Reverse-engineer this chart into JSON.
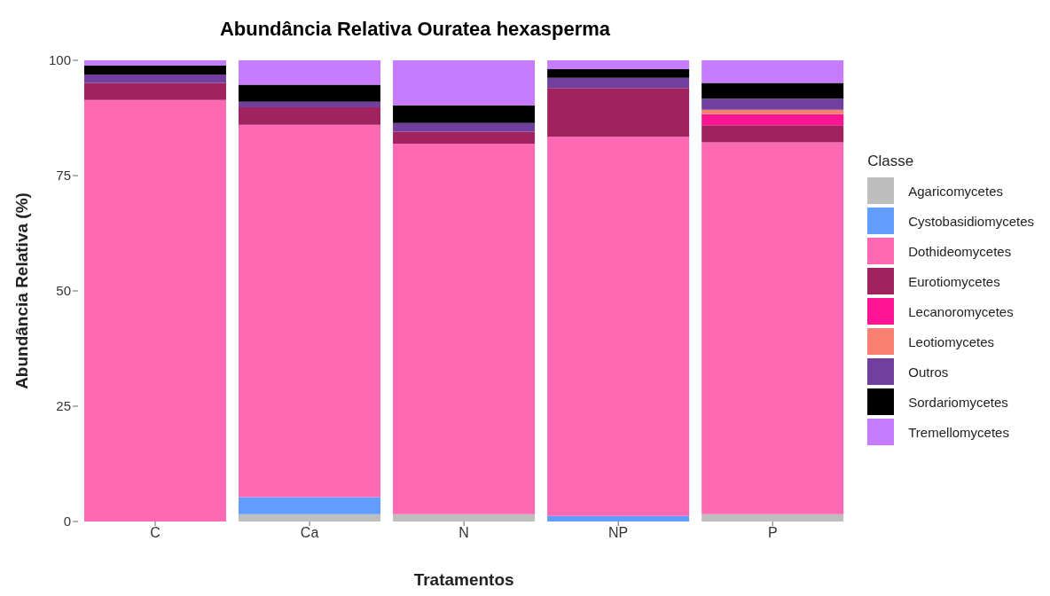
{
  "chart_data": {
    "type": "bar",
    "stacked": true,
    "title": "Abundância Relativa Ouratea hexasperma",
    "xlabel": "Tratamentos",
    "ylabel": "Abundância Relativa (%)",
    "legend_title": "Classe",
    "legend": "right",
    "grid": false,
    "categories": [
      "C",
      "Ca",
      "N",
      "NP",
      "P"
    ],
    "ylim": [
      0,
      100
    ],
    "yticks": [
      0,
      25,
      50,
      75,
      100
    ],
    "series": [
      {
        "name": "Agaricomycetes",
        "color": "#bebebe",
        "values": [
          0,
          1.6,
          1.6,
          0,
          1.6
        ]
      },
      {
        "name": "Cystobasidiomycetes",
        "color": "#619cff",
        "values": [
          0,
          3.7,
          0,
          1.2,
          0
        ]
      },
      {
        "name": "Dothideomycetes",
        "color": "#ff69b4",
        "values": [
          91.4,
          80.7,
          80.3,
          82.2,
          80.6
        ]
      },
      {
        "name": "Eurotiomycetes",
        "color": "#a0235f",
        "values": [
          3.7,
          3.8,
          2.6,
          10.6,
          3.7
        ]
      },
      {
        "name": "Lecanoromycetes",
        "color": "#ff1493",
        "values": [
          0,
          0,
          0,
          0,
          2.4
        ]
      },
      {
        "name": "Leotiomycetes",
        "color": "#fa8072",
        "values": [
          0,
          0,
          0,
          0,
          1.0
        ]
      },
      {
        "name": "Outros",
        "color": "#71409f",
        "values": [
          1.8,
          1.2,
          1.9,
          2.2,
          2.4
        ]
      },
      {
        "name": "Sordariomycetes",
        "color": "#000000",
        "values": [
          2.0,
          3.7,
          3.8,
          1.9,
          3.4
        ]
      },
      {
        "name": "Tremellomycetes",
        "color": "#c77cff",
        "values": [
          1.1,
          5.3,
          9.8,
          1.9,
          4.9
        ]
      }
    ]
  }
}
